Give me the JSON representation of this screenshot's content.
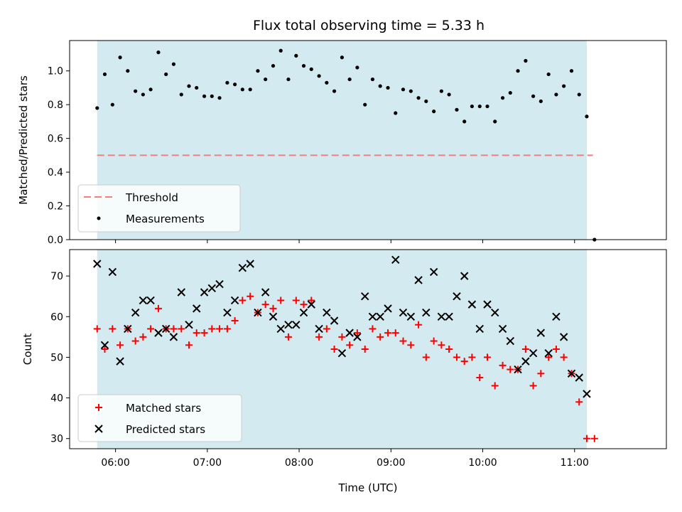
{
  "chart_data": {
    "title": "Flux total observing time = 5.33 h",
    "xlabel": "Time (UTC)",
    "x_ticks": [
      "06:00",
      "07:00",
      "08:00",
      "09:00",
      "10:00",
      "11:00"
    ],
    "x_tick_hours": [
      6,
      7,
      8,
      9,
      10,
      11
    ],
    "x_range_hours": [
      5.5,
      12.0
    ],
    "observing_window_hours": [
      5.8,
      11.133
    ],
    "colors": {
      "observing_window": "#d3eaf0",
      "threshold": "#f08080",
      "measurements": "#000000",
      "matched": "#ff0000",
      "predicted": "#000000"
    },
    "panels": [
      {
        "type": "scatter",
        "ylabel": "Matched/Predicted stars",
        "ylim": [
          0,
          1.18
        ],
        "y_ticks": [
          0.0,
          0.2,
          0.4,
          0.6,
          0.8,
          1.0
        ],
        "y_tick_labels": [
          "0.0",
          "0.2",
          "0.4",
          "0.6",
          "0.8",
          "1.0"
        ],
        "threshold": 0.5,
        "legend": {
          "position": "lower-left",
          "entries": [
            "Threshold",
            "Measurements"
          ]
        },
        "series": [
          {
            "name": "Measurements",
            "marker": "dot",
            "x": [
              5.8,
              5.883,
              5.967,
              6.05,
              6.133,
              6.217,
              6.3,
              6.383,
              6.467,
              6.55,
              6.633,
              6.717,
              6.8,
              6.883,
              6.967,
              7.05,
              7.133,
              7.217,
              7.3,
              7.383,
              7.467,
              7.55,
              7.633,
              7.717,
              7.8,
              7.883,
              7.967,
              8.05,
              8.133,
              8.217,
              8.3,
              8.383,
              8.467,
              8.55,
              8.633,
              8.717,
              8.8,
              8.883,
              8.967,
              9.05,
              9.133,
              9.217,
              9.3,
              9.383,
              9.467,
              9.55,
              9.633,
              9.717,
              9.8,
              9.883,
              9.967,
              10.05,
              10.133,
              10.217,
              10.3,
              10.383,
              10.467,
              10.55,
              10.633,
              10.717,
              10.8,
              10.883,
              10.967,
              11.05,
              11.133,
              11.217
            ],
            "y": [
              0.78,
              0.98,
              0.8,
              1.08,
              1.0,
              0.88,
              0.86,
              0.89,
              1.11,
              0.98,
              1.04,
              0.86,
              0.91,
              0.9,
              0.85,
              0.85,
              0.84,
              0.93,
              0.92,
              0.89,
              0.89,
              1.0,
              0.95,
              1.03,
              1.12,
              0.95,
              1.09,
              1.03,
              1.01,
              0.97,
              0.93,
              0.88,
              1.08,
              0.95,
              1.02,
              0.8,
              0.95,
              0.91,
              0.9,
              0.75,
              0.89,
              0.88,
              0.84,
              0.82,
              0.76,
              0.88,
              0.86,
              0.77,
              0.7,
              0.79,
              0.79,
              0.79,
              0.7,
              0.84,
              0.87,
              1.0,
              1.06,
              0.85,
              0.82,
              0.98,
              0.86,
              0.91,
              1.0,
              0.86,
              0.73,
              0.0
            ]
          }
        ]
      },
      {
        "type": "scatter",
        "ylabel": "Count",
        "ylim": [
          27.5,
          76.5
        ],
        "y_ticks": [
          30,
          40,
          50,
          60,
          70
        ],
        "y_tick_labels": [
          "30",
          "40",
          "50",
          "60",
          "70"
        ],
        "legend": {
          "position": "lower-left",
          "entries": [
            "Matched stars",
            "Predicted stars"
          ]
        },
        "series": [
          {
            "name": "Matched stars",
            "marker": "plus",
            "x": [
              5.8,
              5.883,
              5.967,
              6.05,
              6.133,
              6.217,
              6.3,
              6.383,
              6.467,
              6.55,
              6.633,
              6.717,
              6.8,
              6.883,
              6.967,
              7.05,
              7.133,
              7.217,
              7.3,
              7.383,
              7.467,
              7.55,
              7.633,
              7.717,
              7.8,
              7.883,
              7.967,
              8.05,
              8.133,
              8.217,
              8.3,
              8.383,
              8.467,
              8.55,
              8.633,
              8.717,
              8.8,
              8.883,
              8.967,
              9.05,
              9.133,
              9.217,
              9.3,
              9.383,
              9.467,
              9.55,
              9.633,
              9.717,
              9.8,
              9.883,
              9.967,
              10.05,
              10.133,
              10.217,
              10.3,
              10.383,
              10.467,
              10.55,
              10.633,
              10.717,
              10.8,
              10.883,
              10.967,
              11.05,
              11.133,
              11.217
            ],
            "y": [
              57,
              52,
              57,
              53,
              57,
              54,
              55,
              57,
              62,
              57,
              57,
              57,
              53,
              56,
              56,
              57,
              57,
              57,
              59,
              64,
              65,
              61,
              63,
              62,
              64,
              55,
              64,
              63,
              64,
              55,
              57,
              52,
              55,
              53,
              56,
              52,
              57,
              55,
              56,
              56,
              54,
              53,
              58,
              50,
              54,
              53,
              52,
              50,
              49,
              50,
              45,
              50,
              43,
              48,
              47,
              47,
              52,
              43,
              46,
              50,
              52,
              50,
              46,
              39,
              30,
              30
            ]
          },
          {
            "name": "Predicted stars",
            "marker": "cross",
            "x": [
              5.8,
              5.883,
              5.967,
              6.05,
              6.133,
              6.217,
              6.3,
              6.383,
              6.467,
              6.55,
              6.633,
              6.717,
              6.8,
              6.883,
              6.967,
              7.05,
              7.133,
              7.217,
              7.3,
              7.383,
              7.467,
              7.55,
              7.633,
              7.717,
              7.8,
              7.883,
              7.967,
              8.05,
              8.133,
              8.217,
              8.3,
              8.383,
              8.467,
              8.55,
              8.633,
              8.717,
              8.8,
              8.883,
              8.967,
              9.05,
              9.133,
              9.217,
              9.3,
              9.383,
              9.467,
              9.55,
              9.633,
              9.717,
              9.8,
              9.883,
              9.967,
              10.05,
              10.133,
              10.217,
              10.3,
              10.383,
              10.467,
              10.55,
              10.633,
              10.717,
              10.8,
              10.883,
              10.967,
              11.05,
              11.133
            ],
            "y": [
              73,
              53,
              71,
              49,
              57,
              61,
              64,
              64,
              56,
              57,
              55,
              66,
              58,
              62,
              66,
              67,
              68,
              61,
              64,
              72,
              73,
              61,
              66,
              60,
              57,
              58,
              58,
              61,
              63,
              57,
              61,
              59,
              51,
              56,
              55,
              65,
              60,
              60,
              62,
              74,
              61,
              60,
              69,
              61,
              71,
              60,
              60,
              65,
              70,
              63,
              57,
              63,
              61,
              57,
              54,
              47,
              49,
              51,
              56,
              51,
              60,
              55,
              46,
              45,
              41
            ]
          }
        ]
      }
    ]
  }
}
